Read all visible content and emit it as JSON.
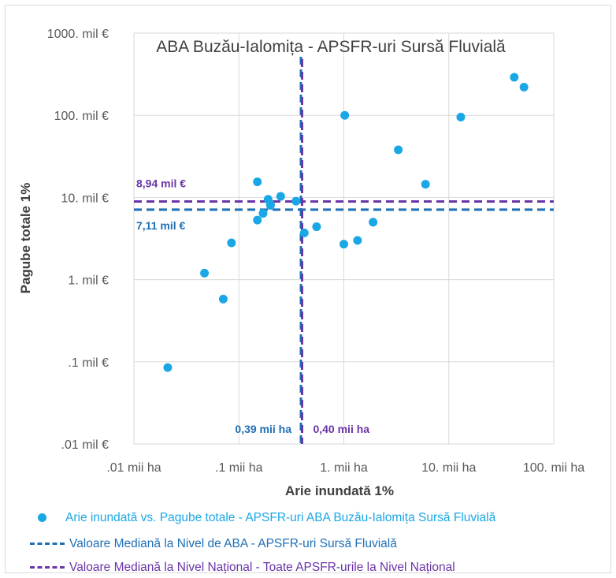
{
  "chart_data": {
    "type": "scatter",
    "title": "ABA Buzău-Ialomița - APSFR-uri Sursă Fluvială",
    "xlabel": "Arie inundată 1%",
    "ylabel": "Pagube totale 1%",
    "x_scale": "log",
    "y_scale": "log",
    "xlim": [
      0.01,
      100
    ],
    "ylim": [
      0.01,
      1000
    ],
    "x_ticks": [
      0.01,
      0.1,
      1,
      10,
      100
    ],
    "x_tick_labels": [
      ".01 mii ha",
      ".1 mii ha",
      "1. mii ha",
      "10. mii ha",
      "100. mii ha"
    ],
    "y_ticks": [
      0.01,
      0.1,
      1,
      10,
      100,
      1000
    ],
    "y_tick_labels": [
      ".01 mil €",
      ".1 mil €",
      "1. mil €",
      "10. mil €",
      "100. mil €",
      "1000. mil €"
    ],
    "grid": true,
    "legend_position": "bottom",
    "series": [
      {
        "name": "Arie inundată vs. Pagube totale - APSFR-uri ABA Buzău-Ialomița Sursă Fluvială",
        "kind": "scatter",
        "color": "#1aa7e6",
        "x": [
          0.021,
          0.047,
          0.071,
          0.085,
          0.15,
          0.15,
          0.17,
          0.19,
          0.2,
          0.2,
          0.25,
          0.35,
          0.42,
          0.55,
          1.0,
          1.02,
          1.35,
          1.9,
          3.3,
          6.0,
          13.0,
          42.0,
          52.0
        ],
        "y": [
          0.085,
          1.2,
          0.58,
          2.8,
          5.3,
          15.5,
          6.4,
          9.5,
          8.0,
          8.2,
          10.3,
          9.0,
          3.7,
          4.4,
          2.7,
          100,
          3.0,
          5.0,
          38,
          14.5,
          95,
          290,
          220
        ]
      },
      {
        "name": "Valoare Mediană la Nivel de ABA - APSFR-uri Sursă Fluvială",
        "kind": "median",
        "color": "#1f6fb5",
        "x_value": 0.39,
        "y_value": 7.11,
        "x_label": "0,39 mii ha",
        "y_label": "7,11 mil €"
      },
      {
        "name": "Valoare Mediană la Nivel Național - Toate APSFR-urile la Nivel Național",
        "kind": "median",
        "color": "#6a35a8",
        "x_value": 0.4,
        "y_value": 8.94,
        "x_label": "0,40 mii ha",
        "y_label": "8,94 mil €"
      }
    ]
  },
  "colors": {
    "point": "#1aa7e6",
    "median_aba": "#1f6fb5",
    "median_national": "#6a35a8",
    "grid": "#d9d9d9",
    "axis_text": "#595959"
  }
}
